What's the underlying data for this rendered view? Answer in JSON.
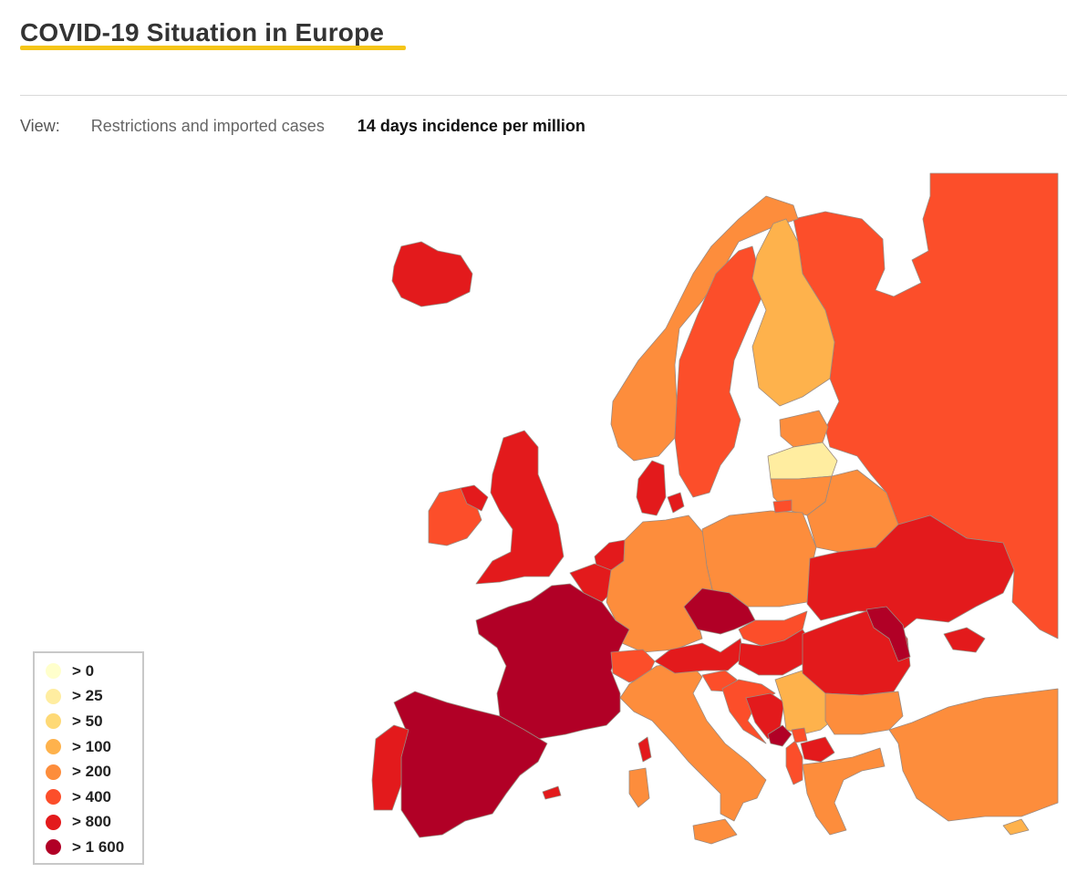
{
  "header": {
    "title": "COVID-19 Situation in Europe"
  },
  "view": {
    "label": "View:",
    "tabs": [
      {
        "label": "Restrictions and imported cases",
        "active": false
      },
      {
        "label": "14 days incidence per million",
        "active": true
      }
    ]
  },
  "legend": {
    "items": [
      {
        "label": "> 0",
        "color": "#ffffcc"
      },
      {
        "label": "> 25",
        "color": "#ffeda0"
      },
      {
        "label": "> 50",
        "color": "#fed976"
      },
      {
        "label": "> 100",
        "color": "#feb24c"
      },
      {
        "label": "> 200",
        "color": "#fd8d3c"
      },
      {
        "label": "> 400",
        "color": "#fc4e2a"
      },
      {
        "label": "> 800",
        "color": "#e31a1c"
      },
      {
        "label": "> 1 600",
        "color": "#b10026"
      }
    ]
  },
  "map": {
    "border_color": "#9a8a80",
    "countries": [
      {
        "name": "Russia",
        "bin": "> 400"
      },
      {
        "name": "Iceland",
        "bin": "> 800"
      },
      {
        "name": "Norway",
        "bin": "> 200"
      },
      {
        "name": "Sweden",
        "bin": "> 400"
      },
      {
        "name": "Finland",
        "bin": "> 100"
      },
      {
        "name": "Estonia",
        "bin": "> 200"
      },
      {
        "name": "Latvia",
        "bin": "> 25"
      },
      {
        "name": "Lithuania",
        "bin": "> 200"
      },
      {
        "name": "Belarus",
        "bin": "> 200"
      },
      {
        "name": "Ireland",
        "bin": "> 400"
      },
      {
        "name": "Northern Ireland",
        "bin": "> 800"
      },
      {
        "name": "United Kingdom",
        "bin": "> 800"
      },
      {
        "name": "Denmark",
        "bin": "> 800"
      },
      {
        "name": "Netherlands",
        "bin": "> 800"
      },
      {
        "name": "Belgium",
        "bin": "> 800"
      },
      {
        "name": "Germany",
        "bin": "> 200"
      },
      {
        "name": "Poland",
        "bin": "> 200"
      },
      {
        "name": "Kaliningrad",
        "bin": "> 400"
      },
      {
        "name": "Ukraine",
        "bin": "> 800"
      },
      {
        "name": "France",
        "bin": "> 1 600"
      },
      {
        "name": "Spain",
        "bin": "> 1 600"
      },
      {
        "name": "Portugal",
        "bin": "> 800"
      },
      {
        "name": "Switzerland",
        "bin": "> 400"
      },
      {
        "name": "Italy",
        "bin": "> 200"
      },
      {
        "name": "Austria",
        "bin": "> 800"
      },
      {
        "name": "Czechia",
        "bin": "> 1 600"
      },
      {
        "name": "Slovakia",
        "bin": "> 400"
      },
      {
        "name": "Hungary",
        "bin": "> 800"
      },
      {
        "name": "Slovenia",
        "bin": "> 400"
      },
      {
        "name": "Croatia",
        "bin": "> 400"
      },
      {
        "name": "Bosnia and Herzegovina",
        "bin": "> 800"
      },
      {
        "name": "Serbia",
        "bin": "> 100"
      },
      {
        "name": "Montenegro",
        "bin": "> 1 600"
      },
      {
        "name": "Albania",
        "bin": "> 400"
      },
      {
        "name": "North Macedonia",
        "bin": "> 800"
      },
      {
        "name": "Kosovo",
        "bin": "> 400"
      },
      {
        "name": "Romania",
        "bin": "> 800"
      },
      {
        "name": "Moldova",
        "bin": "> 1 600"
      },
      {
        "name": "Bulgaria",
        "bin": "> 200"
      },
      {
        "name": "Greece",
        "bin": "> 200"
      },
      {
        "name": "Turkey",
        "bin": "> 200"
      },
      {
        "name": "Crimea",
        "bin": "> 800"
      },
      {
        "name": "Cyprus",
        "bin": "> 100"
      },
      {
        "name": "Corsica",
        "bin": "> 800"
      },
      {
        "name": "Sardinia",
        "bin": "> 200"
      },
      {
        "name": "Sicily",
        "bin": "> 200"
      },
      {
        "name": "Balearic Islands",
        "bin": "> 800"
      }
    ]
  }
}
